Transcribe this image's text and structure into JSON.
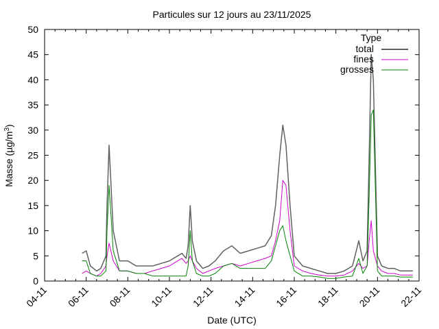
{
  "chart_data": {
    "type": "line",
    "title": "Particules sur 12 jours au 23/11/2025",
    "xlabel": "Date (UTC)",
    "ylabel_main": "Masse (µg/m",
    "ylabel_sup": "3",
    "ylabel_tail": ")",
    "ylim": [
      0,
      50
    ],
    "yticks": [
      "0",
      "5",
      "10",
      "15",
      "20",
      "25",
      "30",
      "35",
      "40",
      "45",
      "50"
    ],
    "xlim_days": [
      4,
      22
    ],
    "xticks": [
      "04-11",
      "06-11",
      "08-11",
      "10-11",
      "12-11",
      "14-11",
      "16-11",
      "18-11",
      "20-11",
      "22-11"
    ],
    "legend": {
      "title": "Type",
      "placement": "top-right"
    },
    "grid": false,
    "series": [
      {
        "name": "total",
        "color": "#606060",
        "x": [
          5.8,
          6.0,
          6.2,
          6.5,
          6.7,
          6.95,
          7.0,
          7.1,
          7.3,
          7.6,
          8.0,
          8.4,
          8.8,
          9.2,
          9.6,
          10.0,
          10.4,
          10.6,
          10.8,
          10.9,
          11.0,
          11.1,
          11.3,
          11.6,
          11.9,
          12.2,
          12.6,
          13.0,
          13.4,
          13.8,
          14.2,
          14.6,
          14.9,
          15.1,
          15.3,
          15.45,
          15.6,
          15.8,
          16.0,
          16.4,
          16.8,
          17.2,
          17.6,
          18.0,
          18.4,
          18.8,
          19.1,
          19.3,
          19.5,
          19.6,
          19.7,
          19.8,
          20.0,
          20.2,
          20.5,
          20.8,
          21.1,
          21.4,
          21.7
        ],
        "y": [
          5.5,
          6,
          3,
          2,
          2.5,
          5,
          15,
          27,
          10,
          4,
          4,
          3,
          3,
          3,
          3.5,
          4,
          5,
          5.5,
          4.5,
          7,
          15,
          8,
          4,
          2.5,
          3,
          4,
          6,
          7,
          5.5,
          6,
          6.5,
          7,
          9,
          15,
          25,
          31,
          27,
          15,
          5,
          3,
          2.5,
          2,
          1.5,
          1.5,
          2,
          3,
          8,
          4,
          6,
          25,
          45,
          40,
          5,
          3,
          2.5,
          2.5,
          2,
          2,
          2
        ]
      },
      {
        "name": "fines",
        "color": "#cc00cc",
        "x": [
          5.8,
          6.0,
          6.2,
          6.5,
          6.7,
          6.95,
          7.0,
          7.1,
          7.3,
          7.6,
          8.0,
          8.4,
          8.8,
          9.2,
          9.6,
          10.0,
          10.4,
          10.6,
          10.8,
          10.9,
          11.0,
          11.1,
          11.3,
          11.6,
          11.9,
          12.2,
          12.6,
          13.0,
          13.4,
          13.8,
          14.2,
          14.6,
          14.9,
          15.1,
          15.3,
          15.45,
          15.6,
          15.8,
          16.0,
          16.4,
          16.8,
          17.2,
          17.6,
          18.0,
          18.4,
          18.8,
          19.1,
          19.3,
          19.5,
          19.6,
          19.7,
          19.8,
          20.0,
          20.2,
          20.5,
          20.8,
          21.1,
          21.4,
          21.7
        ],
        "y": [
          1.5,
          2,
          1.5,
          1,
          1.5,
          3,
          5,
          7.5,
          4,
          2,
          2,
          1.5,
          1.5,
          2,
          2.5,
          3,
          4,
          4.5,
          3.5,
          4,
          5,
          4,
          2.5,
          1.5,
          2,
          2.5,
          3,
          3.5,
          3,
          3.5,
          4,
          4.5,
          5,
          8,
          12,
          20,
          19,
          10,
          3,
          2,
          1.5,
          1.2,
          1,
          1,
          1.2,
          2,
          3.5,
          2.5,
          3,
          8,
          12,
          6,
          3,
          2,
          1.5,
          1.5,
          1.2,
          1.2,
          1.2
        ]
      },
      {
        "name": "grosses",
        "color": "#008000",
        "x": [
          5.8,
          6.0,
          6.2,
          6.5,
          6.7,
          6.95,
          7.0,
          7.1,
          7.3,
          7.6,
          8.0,
          8.4,
          8.8,
          9.2,
          9.6,
          10.0,
          10.4,
          10.6,
          10.8,
          10.9,
          11.0,
          11.1,
          11.3,
          11.6,
          11.9,
          12.2,
          12.6,
          13.0,
          13.4,
          13.8,
          14.2,
          14.6,
          14.9,
          15.1,
          15.3,
          15.45,
          15.6,
          15.8,
          16.0,
          16.4,
          16.8,
          17.2,
          17.6,
          18.0,
          18.4,
          18.8,
          19.1,
          19.3,
          19.5,
          19.6,
          19.7,
          19.8,
          20.0,
          20.2,
          20.5,
          20.8,
          21.1,
          21.4,
          21.7
        ],
        "y": [
          4,
          4,
          1.5,
          1,
          1,
          2,
          10,
          19,
          6,
          2,
          2,
          1.5,
          1.5,
          1,
          1,
          1,
          1,
          1,
          1,
          3,
          10,
          4,
          1.5,
          1,
          1,
          1.5,
          3,
          3.5,
          2.5,
          2.5,
          2.5,
          2.5,
          4,
          7,
          10,
          11,
          8,
          5,
          2,
          1,
          1,
          0.8,
          0.5,
          0.5,
          0.8,
          1,
          4.5,
          1.5,
          3,
          17,
          33,
          34,
          2,
          1,
          1,
          1,
          0.8,
          0.8,
          0.8
        ]
      }
    ]
  }
}
